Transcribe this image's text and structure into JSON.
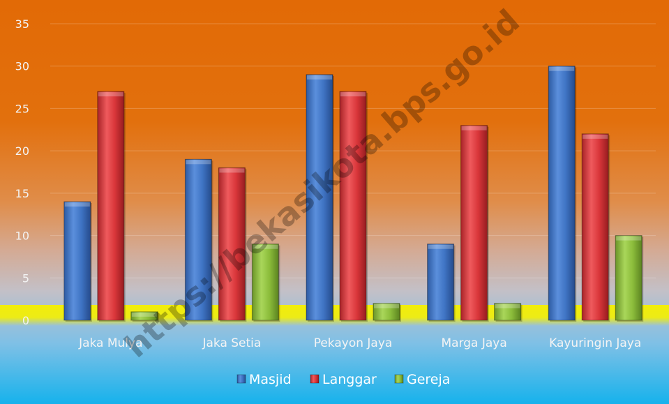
{
  "watermark": "https://bekasikota.bps.go.id",
  "colors": {
    "masjid": "#3f74c4",
    "langgar": "#d9363a",
    "gereja": "#8cbd3b",
    "background_top": "#e26a06",
    "background_bottom": "#16b2ec",
    "baseline_band": "#f5f000"
  },
  "chart_data": {
    "type": "bar",
    "categories": [
      "Jaka Mulya",
      "Jaka Setia",
      "Pekayon Jaya",
      "Marga Jaya",
      "Kayuringin Jaya"
    ],
    "series": [
      {
        "name": "Masjid",
        "values": [
          14,
          19,
          29,
          9,
          30
        ]
      },
      {
        "name": "Langgar",
        "values": [
          27,
          18,
          27,
          23,
          22
        ]
      },
      {
        "name": "Gereja",
        "values": [
          1,
          9,
          2,
          2,
          10
        ]
      }
    ],
    "yticks": [
      "0",
      "5",
      "10",
      "15",
      "20",
      "25",
      "30",
      "35"
    ],
    "ylim": [
      0,
      35
    ],
    "grid": true,
    "legend_position": "bottom"
  }
}
